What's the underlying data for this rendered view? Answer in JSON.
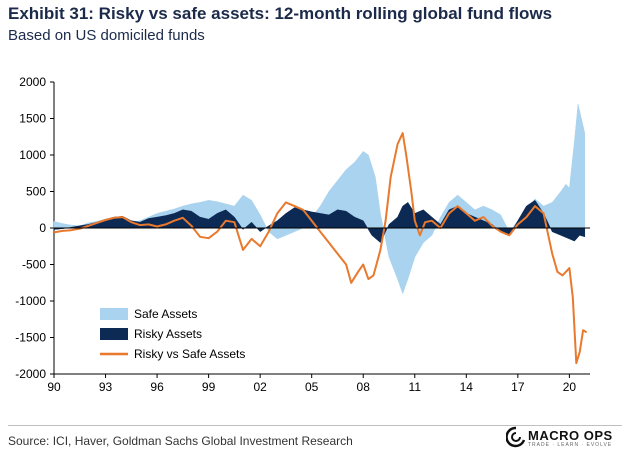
{
  "header": {
    "title": "Exhibit 31: Risky vs safe assets: 12-month rolling global fund flows",
    "subtitle": "Based on US domiciled funds"
  },
  "footer": {
    "source": "Source: ICI, Haver, Goldman Sachs Global Investment Research",
    "brand": "MACRO OPS",
    "brand_tagline": "TRADE · LEARN · EVOLVE"
  },
  "colors": {
    "safe": "#a9d3ee",
    "risky": "#0d2a55",
    "diff": "#e8792d",
    "axis": "#000000"
  },
  "chart_data": {
    "type": "area",
    "title": "Exhibit 31: Risky vs safe assets: 12-month rolling global fund flows",
    "subtitle": "Based on US domiciled funds",
    "xlabel": "",
    "ylabel": "",
    "xlim": [
      1990,
      2021.2
    ],
    "ylim": [
      -2000,
      2000
    ],
    "y_ticks": [
      2000,
      1500,
      1000,
      500,
      0,
      -500,
      -1000,
      -1500,
      -2000
    ],
    "x_ticks": [
      1990,
      1993,
      1996,
      1999,
      2002,
      2005,
      2008,
      2011,
      2014,
      2017,
      2020
    ],
    "x_tick_labels": [
      "90",
      "93",
      "96",
      "99",
      "02",
      "05",
      "08",
      "11",
      "14",
      "17",
      "20"
    ],
    "legend": [
      "Safe Assets",
      "Risky Assets",
      "Risky vs Safe Assets"
    ],
    "legend_position": "bottom-left",
    "series": [
      {
        "name": "Safe Assets",
        "style": "area",
        "x": [
          1990,
          1990.5,
          1991,
          1991.5,
          1992,
          1992.5,
          1993,
          1993.5,
          1994,
          1994.5,
          1995,
          1995.5,
          1996,
          1996.5,
          1997,
          1997.5,
          1998,
          1998.5,
          1999,
          1999.5,
          2000,
          2000.5,
          2001,
          2001.5,
          2002,
          2002.5,
          2003,
          2003.5,
          2004,
          2004.5,
          2005,
          2005.5,
          2006,
          2006.5,
          2007,
          2007.5,
          2008,
          2008.3,
          2008.7,
          2009,
          2009.5,
          2010,
          2010.3,
          2010.6,
          2011,
          2011.5,
          2012,
          2012.5,
          2013,
          2013.5,
          2014,
          2014.5,
          2015,
          2015.5,
          2016,
          2016.5,
          2017,
          2017.5,
          2018,
          2018.5,
          2019,
          2019.5,
          2019.8,
          2020,
          2020.3,
          2020.5,
          2020.7,
          2020.9
        ],
        "values": [
          90,
          60,
          40,
          30,
          70,
          90,
          120,
          140,
          120,
          80,
          100,
          150,
          200,
          230,
          260,
          300,
          330,
          350,
          380,
          360,
          330,
          300,
          450,
          380,
          180,
          -50,
          -150,
          -100,
          -50,
          0,
          150,
          300,
          500,
          650,
          800,
          900,
          1050,
          1000,
          700,
          200,
          -400,
          -700,
          -900,
          -700,
          -400,
          -200,
          -100,
          150,
          350,
          450,
          350,
          250,
          300,
          250,
          180,
          -50,
          100,
          250,
          400,
          300,
          350,
          500,
          600,
          550,
          1200,
          1700,
          1500,
          1300
        ]
      },
      {
        "name": "Risky Assets",
        "style": "area",
        "x": [
          1990,
          1990.5,
          1991,
          1991.5,
          1992,
          1992.5,
          1993,
          1993.5,
          1994,
          1994.5,
          1995,
          1995.5,
          1996,
          1996.5,
          1997,
          1997.5,
          1998,
          1998.5,
          1999,
          1999.5,
          2000,
          2000.5,
          2001,
          2001.5,
          2002,
          2002.5,
          2003,
          2003.5,
          2004,
          2004.5,
          2005,
          2005.5,
          2006,
          2006.5,
          2007,
          2007.5,
          2008,
          2008.5,
          2009,
          2009.5,
          2010,
          2010.3,
          2010.6,
          2011,
          2011.5,
          2012,
          2012.5,
          2013,
          2013.5,
          2014,
          2014.5,
          2015,
          2015.5,
          2016,
          2016.5,
          2017,
          2017.5,
          2018,
          2018.5,
          2019,
          2019.5,
          2020,
          2020.3,
          2020.6,
          2020.9
        ],
        "values": [
          -20,
          -10,
          10,
          30,
          50,
          80,
          120,
          150,
          160,
          100,
          80,
          130,
          150,
          170,
          200,
          250,
          230,
          150,
          120,
          200,
          250,
          150,
          -20,
          80,
          -50,
          30,
          100,
          200,
          280,
          250,
          220,
          200,
          180,
          250,
          230,
          150,
          100,
          -100,
          -200,
          50,
          150,
          300,
          350,
          200,
          250,
          150,
          50,
          250,
          300,
          200,
          150,
          100,
          50,
          -50,
          -100,
          100,
          300,
          380,
          200,
          -50,
          -100,
          -150,
          -180,
          -100,
          -120
        ]
      },
      {
        "name": "Risky vs Safe Assets",
        "style": "line",
        "x": [
          1990,
          1990.5,
          1991,
          1991.5,
          1992,
          1992.5,
          1993,
          1993.5,
          1994,
          1994.5,
          1995,
          1995.5,
          1996,
          1996.5,
          1997,
          1997.5,
          1998,
          1998.5,
          1999,
          1999.5,
          2000,
          2000.5,
          2001,
          2001.5,
          2002,
          2002.5,
          2003,
          2003.5,
          2004,
          2004.5,
          2005,
          2005.5,
          2006,
          2006.5,
          2007,
          2007.3,
          2007.7,
          2008,
          2008.3,
          2008.6,
          2009,
          2009.3,
          2009.6,
          2010,
          2010.3,
          2010.5,
          2010.8,
          2011,
          2011.3,
          2011.6,
          2012,
          2012.5,
          2013,
          2013.5,
          2014,
          2014.5,
          2015,
          2015.5,
          2016,
          2016.5,
          2017,
          2017.5,
          2018,
          2018.5,
          2019,
          2019.3,
          2019.6,
          2020,
          2020.2,
          2020.4,
          2020.6,
          2020.8,
          2021
        ],
        "values": [
          -60,
          -40,
          -30,
          -10,
          30,
          70,
          110,
          140,
          150,
          80,
          40,
          50,
          20,
          50,
          100,
          140,
          30,
          -120,
          -140,
          -50,
          100,
          80,
          -300,
          -150,
          -250,
          -50,
          200,
          350,
          300,
          250,
          100,
          -50,
          -200,
          -350,
          -500,
          -750,
          -600,
          -500,
          -700,
          -650,
          -300,
          100,
          700,
          1150,
          1300,
          1000,
          500,
          100,
          -100,
          80,
          100,
          0,
          200,
          300,
          200,
          100,
          150,
          30,
          -50,
          -100,
          50,
          150,
          300,
          200,
          -350,
          -600,
          -650,
          -550,
          -950,
          -1850,
          -1700,
          -1400,
          -1430
        ]
      }
    ]
  }
}
